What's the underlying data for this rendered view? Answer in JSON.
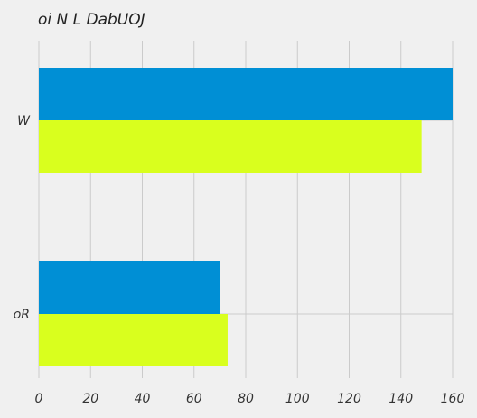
{
  "chart_data": {
    "type": "bar",
    "orientation": "horizontal",
    "title": "oi N L DabUOJ",
    "categories": [
      "W",
      "oR"
    ],
    "series": [
      {
        "values": [
          160,
          70
        ],
        "color": "#008fd5"
      },
      {
        "values": [
          148,
          73
        ],
        "color": "#d9ff1e"
      }
    ],
    "xlim": [
      0,
      160
    ],
    "xticks": [
      0,
      20,
      40,
      60,
      80,
      100,
      120,
      140,
      160
    ],
    "xlabel": "",
    "ylabel": "",
    "grid": true,
    "background": "#f0f0f0",
    "grid_color": "#cbcbcb"
  }
}
